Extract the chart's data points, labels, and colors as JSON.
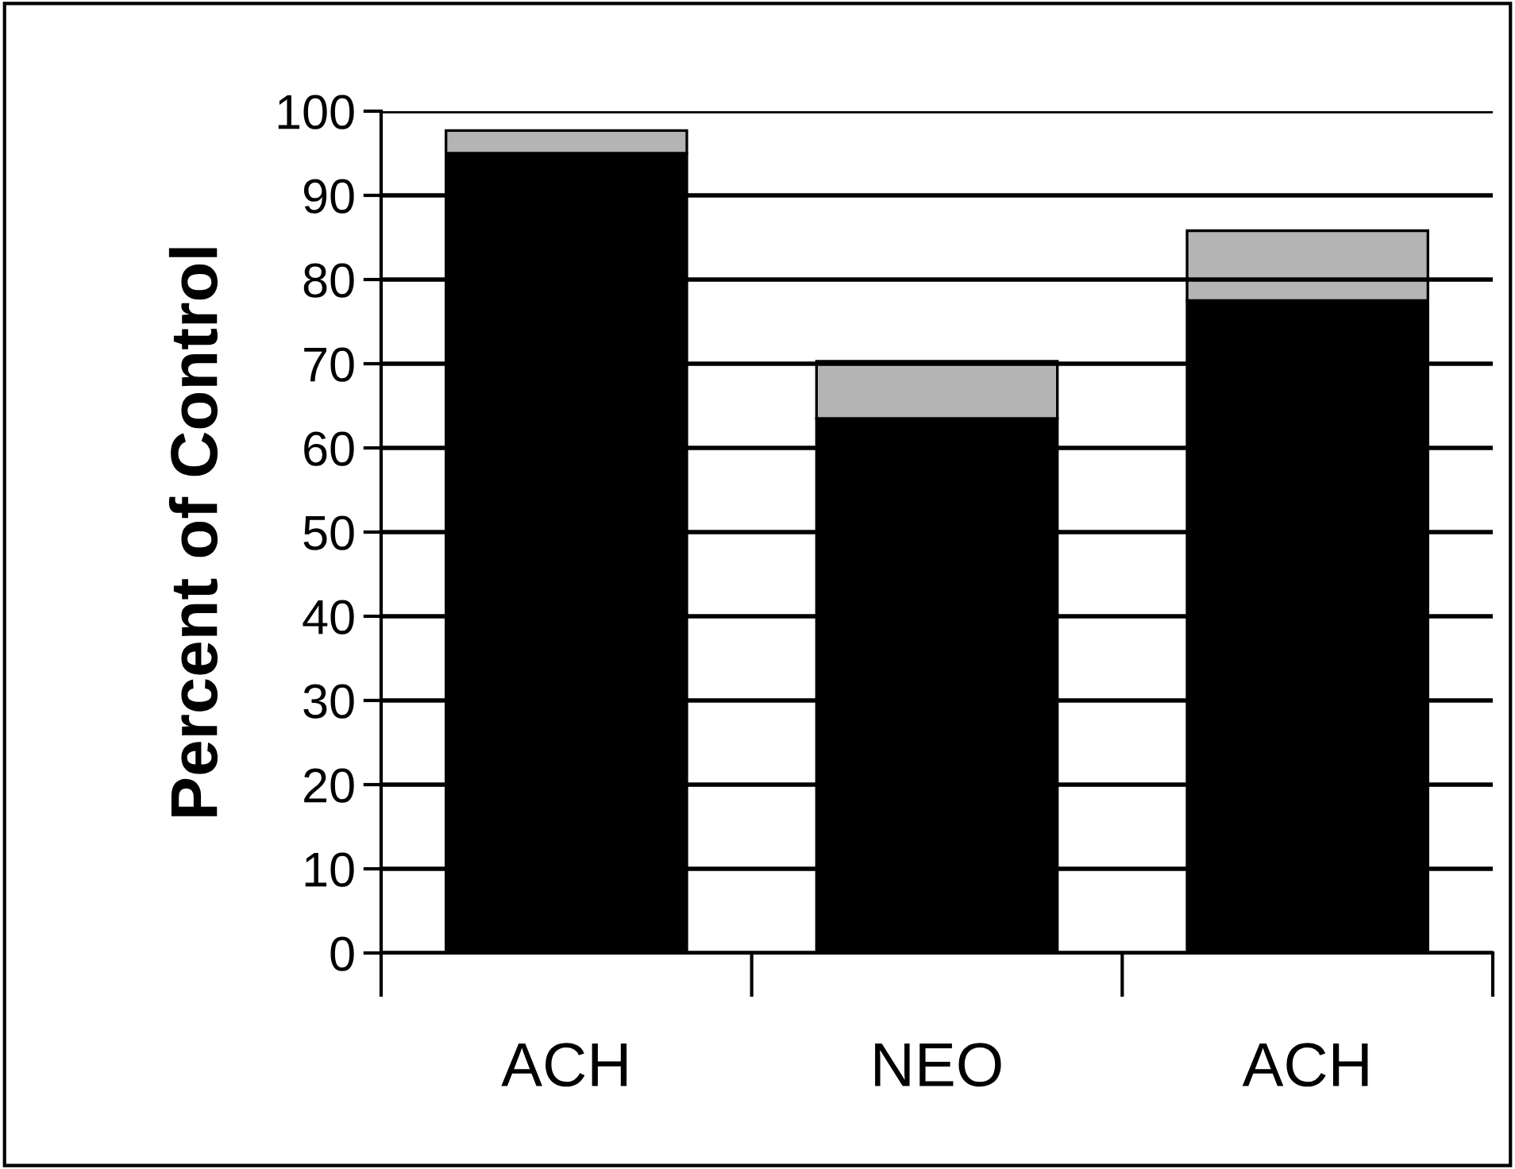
{
  "chart_data": {
    "type": "bar",
    "stacked": true,
    "ylabel": "Percent of Control",
    "categories": [
      "ACH",
      "NEO",
      "ACH"
    ],
    "series": [
      {
        "color": "#000000",
        "values": [
          95,
          63.5,
          77.5
        ]
      },
      {
        "color": "#b4b4b4",
        "values": [
          2.7,
          6.8,
          8.3
        ]
      }
    ],
    "ylim": [
      0,
      100
    ],
    "yticks": [
      0,
      10,
      20,
      30,
      40,
      50,
      60,
      70,
      80,
      90,
      100
    ],
    "grid": "y",
    "legend": false
  }
}
